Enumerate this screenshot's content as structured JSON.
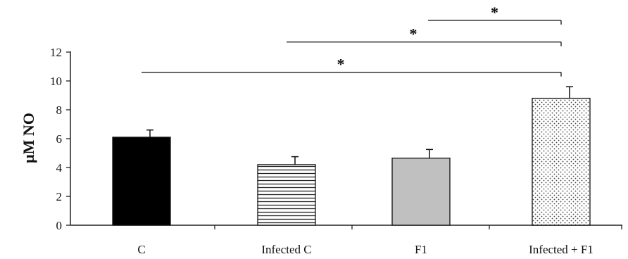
{
  "chart_data": {
    "type": "bar",
    "title": "",
    "xlabel": "",
    "ylabel": "μM NO",
    "ylim": [
      0,
      12
    ],
    "yticks": [
      0,
      2,
      4,
      6,
      8,
      10,
      12
    ],
    "grid": false,
    "legend": "none",
    "categories": [
      "C",
      "Infected C",
      "F1",
      "Infected + F1"
    ],
    "values": [
      6.1,
      4.2,
      4.65,
      8.8
    ],
    "errors": [
      0.5,
      0.55,
      0.6,
      0.8
    ],
    "bar_styles": [
      {
        "fill": "#000000",
        "pattern": "solid"
      },
      {
        "fill": "#ffffff",
        "pattern": "horizontal-lines"
      },
      {
        "fill": "#c0c0c0",
        "pattern": "solid"
      },
      {
        "fill": "#ffffff",
        "pattern": "dots"
      }
    ],
    "significance": [
      {
        "from": "C",
        "to": "Infected + F1",
        "label": "*",
        "y": 10.6
      },
      {
        "from": "Infected C",
        "to": "Infected + F1",
        "label": "*",
        "y": 12.7
      },
      {
        "from": "F1",
        "to": "Infected + F1",
        "label": "*",
        "y": 14.2
      }
    ]
  }
}
